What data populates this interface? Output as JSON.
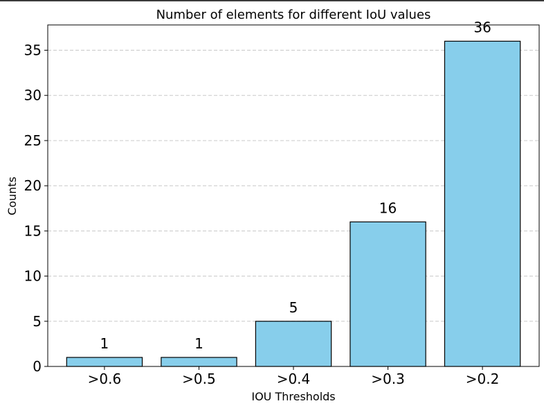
{
  "chart_data": {
    "type": "bar",
    "title": "Number of elements for different IoU values",
    "xlabel": "IOU Thresholds",
    "ylabel": "Counts",
    "categories": [
      ">0.6",
      ">0.5",
      ">0.4",
      ">0.3",
      ">0.2"
    ],
    "values": [
      1,
      1,
      5,
      16,
      36
    ],
    "data_labels": [
      "1",
      "1",
      "5",
      "16",
      "36"
    ],
    "ylim": [
      0,
      37.8
    ],
    "yticks": [
      0,
      5,
      10,
      15,
      20,
      25,
      30,
      35
    ],
    "ytick_labels": [
      "0",
      "5",
      "10",
      "15",
      "20",
      "25",
      "30",
      "35"
    ],
    "grid": "y-dashed",
    "bar_color": "#87ceeb",
    "edge_color": "#000000",
    "grid_color": "#c8c8c8"
  }
}
